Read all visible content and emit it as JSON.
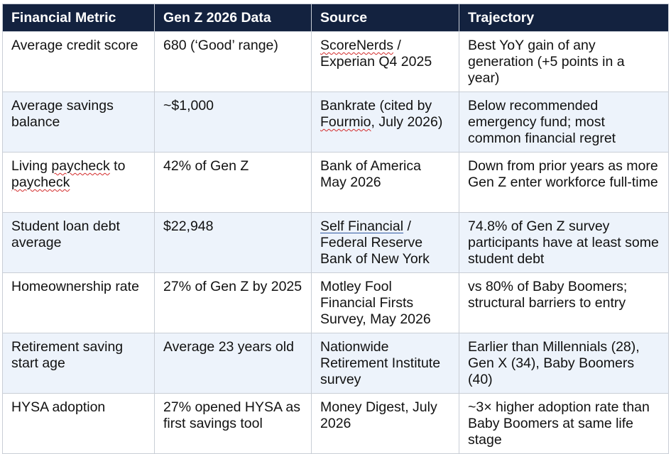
{
  "table": {
    "headers": [
      "Financial Metric",
      "Gen Z 2026 Data",
      "Source",
      "Trajectory"
    ],
    "rows": [
      {
        "metric": "Average credit score",
        "data": "680 (‘Good’ range)",
        "source_pre": "",
        "source_mark": "ScoreNerds",
        "source_post": " / Experian Q4 2025",
        "trajectory": "Best YoY gain of any generation (+5 points in a year)"
      },
      {
        "metric": "Average savings balance",
        "data": "~$1,000",
        "source_pre": "Bankrate (cited by ",
        "source_mark": "Fourmio",
        "source_post": ", July 2026)",
        "trajectory": "Below recommended emergency fund; most common financial regret"
      },
      {
        "metric_pre": "Living ",
        "metric_mark1": "paycheck",
        "metric_mid": " to ",
        "metric_mark2": "paycheck",
        "data": "42% of Gen Z",
        "source": "Bank of America May 2026",
        "trajectory": "Down from prior years as more Gen Z enter workforce full-time"
      },
      {
        "metric": "Student loan debt average",
        "data": "$22,948",
        "source_link": "Self Financial",
        "source_post": " / Federal Reserve Bank of New York",
        "trajectory": "74.8% of Gen Z survey participants have at least some student debt"
      },
      {
        "metric": "Homeownership rate",
        "data": "27% of Gen Z by 2025",
        "source": "Motley Fool Financial Firsts Survey, May 2026",
        "trajectory": "vs 80% of Baby Boomers; structural barriers to entry"
      },
      {
        "metric": "Retirement saving start age",
        "data": "Average 23 years old",
        "source": "Nationwide Retirement Institute survey",
        "trajectory": "Earlier than Millennials (28), Gen X (34), Baby Boomers (40)"
      },
      {
        "metric": "HYSA adoption",
        "data": "27% opened HYSA as first savings tool",
        "source": "Money Digest, July 2026",
        "trajectory": "~3× higher adoption rate than Baby Boomers at same life stage"
      }
    ]
  },
  "colors": {
    "header_bg": "#13223f",
    "header_text": "#ffffff",
    "band_bg": "#edf3fb",
    "border": "#c9ced6",
    "spellcheck_underline": "#d32b2b",
    "link_underline": "#2f5aa3"
  }
}
